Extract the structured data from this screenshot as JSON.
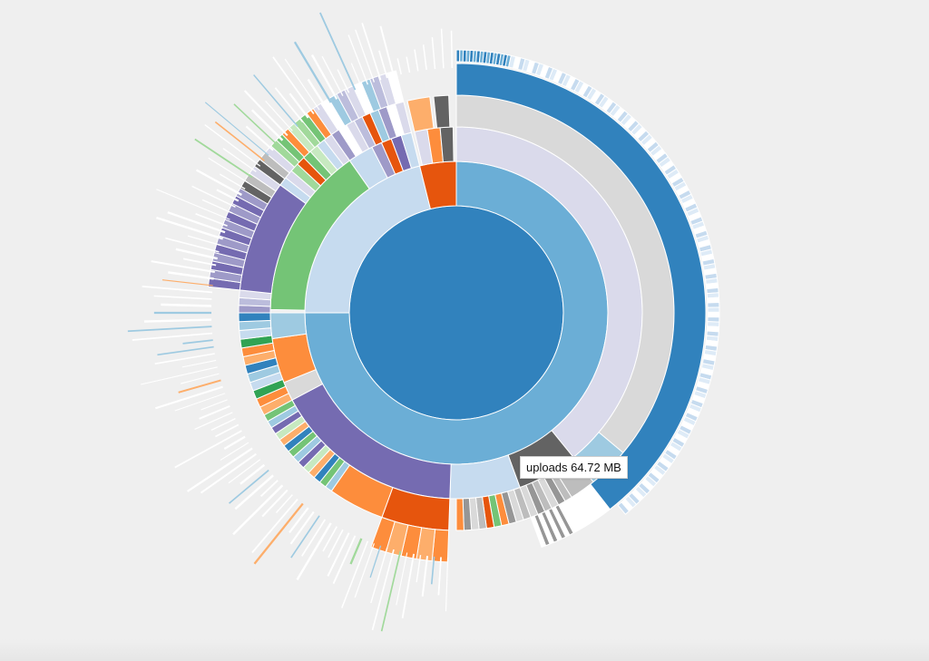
{
  "tooltip": {
    "name": "uploads",
    "size": "64.72 MB"
  }
}
